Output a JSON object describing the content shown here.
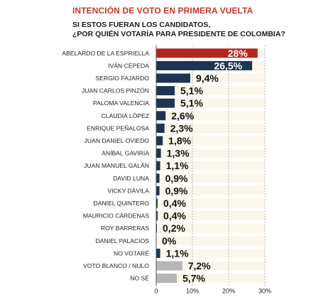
{
  "header": {
    "kicker": "INTENCIÓN DE VOTO EN PRIMERA VUELTA",
    "question_line1": "SI ESTOS FUERAN LOS CANDIDATOS,",
    "question_line2": "¿POR QUIÉN VOTARÍA PARA PRESIDENTE DE COLOMBIA?"
  },
  "chart_data": {
    "type": "bar",
    "orientation": "horizontal",
    "title": "SI ESTOS FUERAN LOS CANDIDATOS, ¿POR QUIÉN VOTARÍA PARA PRESIDENTE DE COLOMBIA?",
    "categories": [
      "ABELARDO DE LA ESPRIELLA",
      "IVÁN CEPEDA",
      "SERGIO FAJARDO",
      "JUAN CARLOS PINZÓN",
      "PALOMA VALENCIA",
      "CLAUDIA LÓPEZ",
      "ENRIQUE PEÑALOSA",
      "JUAN DANIEL OVIEDO",
      "ANÍBAL GAVIRIA",
      "JUAN MANUEL GALÁN",
      "DAVID LUNA",
      "VICKY DÁVILA",
      "DANIEL QUINTERO",
      "MAURICIO CÁRDENAS",
      "ROY BARRERAS",
      "DANIEL PALACIOS",
      "NO VOTARÉ",
      "VOTO BLANCO / NULO",
      "NO SÉ"
    ],
    "values": [
      28,
      26.5,
      9.4,
      5.1,
      5.1,
      2.6,
      2.3,
      1.8,
      1.3,
      1.1,
      0.9,
      0.9,
      0.4,
      0.4,
      0.2,
      0,
      1.1,
      7.2,
      5.7
    ],
    "value_labels": [
      "28%",
      "26,5%",
      "9,4%",
      "5,1%",
      "5,1%",
      "2,6%",
      "2,3%",
      "1,8%",
      "1,3%",
      "1,1%",
      "0,9%",
      "0,9%",
      "0,4%",
      "0,4%",
      "0,2%",
      "0%",
      "1,1%",
      "7,2%",
      "5,7%"
    ],
    "bar_colors": [
      "#b3261e",
      "#1d3553",
      "#1d3553",
      "#1d3553",
      "#1d3553",
      "#1d3553",
      "#1d3553",
      "#1d3553",
      "#1d3553",
      "#1d3553",
      "#1d3553",
      "#1d3553",
      "#1d3553",
      "#1d3553",
      "#1d3553",
      "#1d3553",
      "#1d3553",
      "#b5b5b5",
      "#b5b5b5"
    ],
    "labels_inside_bar": [
      true,
      true,
      false,
      false,
      false,
      false,
      false,
      false,
      false,
      false,
      false,
      false,
      false,
      false,
      false,
      false,
      false,
      false,
      false
    ],
    "xlim": [
      0,
      30
    ],
    "x_ticks": [
      0,
      10,
      20,
      30
    ],
    "x_tick_labels": [
      "0",
      "10%",
      "20%",
      "30%"
    ],
    "track_color": "#fbf6ea",
    "grid": "vertical dashed"
  }
}
